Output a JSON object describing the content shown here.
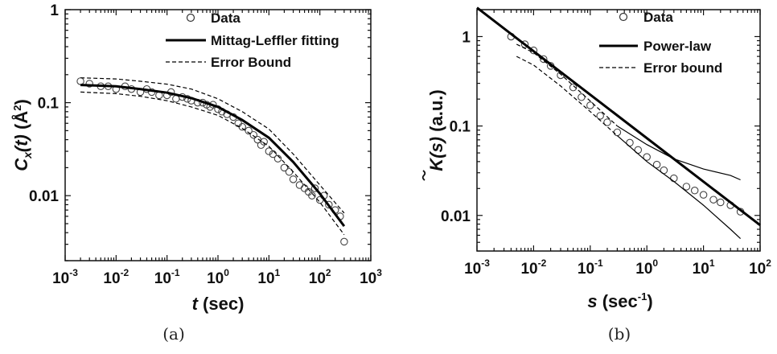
{
  "figure": {
    "captions": [
      "(a)",
      "(b)"
    ]
  },
  "chart_data": [
    {
      "type": "scatter",
      "panel": "(a)",
      "xlabel_var": "t",
      "xlabel_unit": "(sec)",
      "ylabel_var": "C",
      "ylabel_sub": "x",
      "ylabel_arg": "(t)",
      "ylabel_unit": "(Å",
      "ylabel_unit_sup": "2",
      "ylabel_close": ")",
      "x_scale": "log",
      "y_scale": "log",
      "xlim": [
        0.001,
        1000
      ],
      "ylim": [
        0.002,
        1
      ],
      "x_ticks": [
        {
          "base": "10",
          "exp": "-3"
        },
        {
          "base": "10",
          "exp": "-2"
        },
        {
          "base": "10",
          "exp": "-1"
        },
        {
          "base": "10",
          "exp": "0"
        },
        {
          "base": "10",
          "exp": "1"
        },
        {
          "base": "10",
          "exp": "2"
        },
        {
          "base": "10",
          "exp": "3"
        }
      ],
      "y_ticks": [
        "0.01",
        "0.1",
        "1"
      ],
      "legend": {
        "position": "top-right",
        "entries": [
          "Data",
          "Mittag-Leffler fitting",
          "Error Bound"
        ]
      },
      "series": [
        {
          "name": "Data",
          "style": "circles",
          "x": [
            0.002,
            0.003,
            0.005,
            0.007,
            0.01,
            0.015,
            0.02,
            0.03,
            0.04,
            0.05,
            0.07,
            0.1,
            0.12,
            0.15,
            0.2,
            0.25,
            0.3,
            0.4,
            0.5,
            0.6,
            0.7,
            0.8,
            1,
            1.2,
            1.5,
            2,
            2.5,
            3,
            4,
            5,
            6,
            7,
            8,
            10,
            12,
            15,
            20,
            25,
            30,
            40,
            50,
            60,
            70,
            80,
            100,
            120,
            150,
            200,
            250,
            300
          ],
          "y": [
            0.17,
            0.16,
            0.15,
            0.15,
            0.14,
            0.15,
            0.14,
            0.13,
            0.14,
            0.13,
            0.12,
            0.12,
            0.13,
            0.11,
            0.115,
            0.11,
            0.105,
            0.1,
            0.1,
            0.095,
            0.09,
            0.095,
            0.085,
            0.08,
            0.075,
            0.07,
            0.06,
            0.055,
            0.05,
            0.045,
            0.04,
            0.035,
            0.038,
            0.03,
            0.028,
            0.025,
            0.02,
            0.018,
            0.015,
            0.013,
            0.012,
            0.011,
            0.01,
            0.012,
            0.009,
            0.01,
            0.008,
            0.007,
            0.006,
            0.0032
          ]
        },
        {
          "name": "Mittag-Leffler fitting",
          "style": "solid-thick",
          "x": [
            0.002,
            0.01,
            0.03,
            0.1,
            0.3,
            1,
            3,
            10,
            30,
            100,
            300
          ],
          "y": [
            0.155,
            0.15,
            0.14,
            0.128,
            0.112,
            0.09,
            0.065,
            0.042,
            0.023,
            0.0105,
            0.0047
          ]
        },
        {
          "name": "Error Bound",
          "style": "dashed",
          "x": [
            0.002,
            0.01,
            0.03,
            0.1,
            0.3,
            1,
            3,
            10,
            30,
            100,
            300
          ],
          "y": [
            0.185,
            0.18,
            0.17,
            0.158,
            0.14,
            0.11,
            0.08,
            0.052,
            0.028,
            0.013,
            0.0065
          ]
        },
        {
          "name": "Error Bound",
          "style": "dashed",
          "x": [
            0.002,
            0.01,
            0.03,
            0.1,
            0.3,
            1,
            3,
            10,
            30,
            100,
            300
          ],
          "y": [
            0.13,
            0.125,
            0.117,
            0.105,
            0.09,
            0.073,
            0.053,
            0.034,
            0.018,
            0.0085,
            0.0038
          ]
        }
      ]
    },
    {
      "type": "line",
      "panel": "(b)",
      "xlabel_var": "s",
      "xlabel_unit": "(sec",
      "xlabel_unit_sup": "-1",
      "xlabel_close": ")",
      "ylabel_var": "K",
      "ylabel_arg": "(s)",
      "ylabel_unit": "(a.u.)",
      "x_scale": "log",
      "y_scale": "log",
      "xlim": [
        0.001,
        100
      ],
      "ylim": [
        0.004,
        2
      ],
      "x_ticks": [
        {
          "base": "10",
          "exp": "-3"
        },
        {
          "base": "10",
          "exp": "-2"
        },
        {
          "base": "10",
          "exp": "-1"
        },
        {
          "base": "10",
          "exp": "0"
        },
        {
          "base": "10",
          "exp": "1"
        },
        {
          "base": "10",
          "exp": "2"
        }
      ],
      "y_ticks": [
        "0.01",
        "0.1",
        "1"
      ],
      "legend": {
        "position": "top-right",
        "entries": [
          "Data",
          "Power-law",
          "Error bound"
        ]
      },
      "series": [
        {
          "name": "Data",
          "style": "circles",
          "x": [
            0.004,
            0.007,
            0.01,
            0.015,
            0.02,
            0.03,
            0.05,
            0.07,
            0.1,
            0.15,
            0.2,
            0.3,
            0.5,
            0.7,
            1,
            1.5,
            2,
            3,
            5,
            7,
            10,
            15,
            20,
            30,
            45
          ],
          "y": [
            1.0,
            0.82,
            0.7,
            0.56,
            0.47,
            0.37,
            0.27,
            0.21,
            0.17,
            0.13,
            0.11,
            0.085,
            0.065,
            0.054,
            0.045,
            0.037,
            0.032,
            0.026,
            0.021,
            0.019,
            0.017,
            0.015,
            0.014,
            0.013,
            0.011
          ]
        },
        {
          "name": "Power-law",
          "style": "solid-thick",
          "x": [
            0.001,
            100
          ],
          "y": [
            2.1,
            0.0078
          ]
        },
        {
          "name": "Error bound",
          "style": "dashed",
          "x": [
            0.005,
            0.01,
            0.03,
            0.1,
            0.3
          ],
          "y": [
            0.82,
            0.66,
            0.38,
            0.19,
            0.1
          ]
        },
        {
          "name": "Error bound",
          "style": "dashed",
          "x": [
            0.005,
            0.01,
            0.03,
            0.1,
            0.3
          ],
          "y": [
            0.6,
            0.48,
            0.28,
            0.145,
            0.078
          ]
        },
        {
          "name": "Error bound",
          "style": "thin",
          "x": [
            0.3,
            1,
            3,
            10,
            30,
            45
          ],
          "y": [
            0.1,
            0.062,
            0.043,
            0.033,
            0.028,
            0.025
          ]
        },
        {
          "name": "Error bound",
          "style": "thin",
          "x": [
            0.3,
            1,
            3,
            10,
            30,
            45
          ],
          "y": [
            0.078,
            0.04,
            0.024,
            0.013,
            0.007,
            0.0055
          ]
        }
      ]
    }
  ]
}
